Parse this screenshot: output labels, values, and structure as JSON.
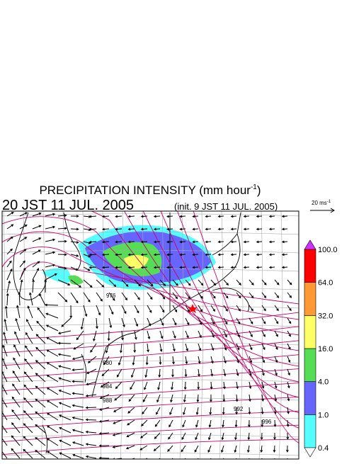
{
  "title": {
    "text": "PRECIPITATION INTENSITY (mm hour",
    "superscript": "-1",
    "close": ")"
  },
  "valid_time": "20 JST 11 JUL. 2005",
  "init_time": "(init. 9 JST 11 JUL. 2005)",
  "wind_scale": {
    "text": "20 ms",
    "superscript": "-1"
  },
  "colorbar": {
    "levels": [
      {
        "value": 0.4,
        "label": "0.4"
      },
      {
        "value": 1,
        "label": "1.0"
      },
      {
        "value": 4,
        "label": "4.0"
      },
      {
        "value": 16,
        "label": "16.0"
      },
      {
        "value": 32,
        "label": "32.0"
      },
      {
        "value": 64,
        "label": "64.0"
      },
      {
        "value": 100,
        "label": "100.0"
      }
    ],
    "colors": [
      "#55ffff",
      "#6666ff",
      "#55dd55",
      "#ffff66",
      "#ff9933",
      "#ff0000"
    ],
    "over_color": "#cc33ff",
    "under_color": "#ffffff"
  },
  "contour_labels": [
    "976",
    "980",
    "984",
    "988",
    "992",
    "996"
  ]
}
